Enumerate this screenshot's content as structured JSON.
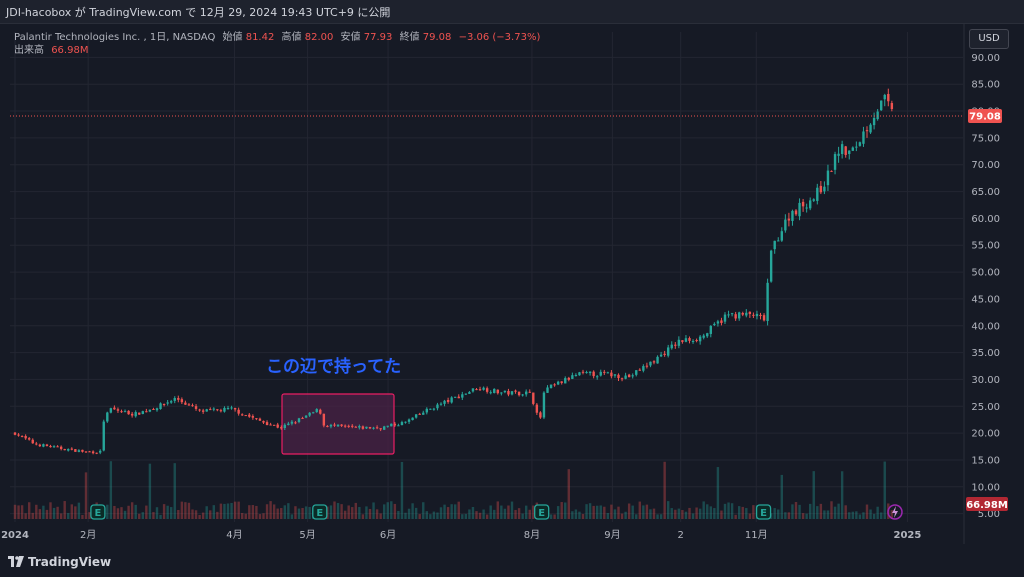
{
  "snapshot_caption": "JDI-hacobox が TradingView.com で 12月 29, 2024 19:43 UTC+9 に公開",
  "legend": {
    "symbol": "Palantir Technologies Inc.",
    "interval": "1日",
    "exchange": "NASDAQ",
    "open_label": "始値",
    "open": "81.42",
    "high_label": "高値",
    "high": "82.00",
    "low_label": "安値",
    "low": "77.93",
    "close_label": "終値",
    "close": "79.08",
    "change": "−3.06 (−3.73%)",
    "volume_label": "出来高",
    "volume": "66.98M"
  },
  "currency_button": "USD",
  "annotation": {
    "text": "この辺で持ってた",
    "color": "#2962ff",
    "box_border": "#e91e63",
    "box_fill": "#4a2145"
  },
  "last_price_label": "79.08",
  "volume_axis_label": "66.98M",
  "brand": "TradingView",
  "colors": {
    "up": "#26a69a",
    "down": "#ef5350",
    "background": "#161a25",
    "grid": "#232632",
    "text": "#b2b5be"
  },
  "earnings_marker": "E",
  "chart_data": {
    "type": "candlestick",
    "title": "Palantir Technologies Inc., 1日, NASDAQ",
    "ylabel": "USD",
    "y_ticks": [
      "90.00",
      "85.00",
      "80.00",
      "75.00",
      "70.00",
      "65.00",
      "60.00",
      "55.00",
      "50.00",
      "45.00",
      "40.00",
      "35.00",
      "30.00",
      "25.00",
      "20.00",
      "15.00",
      "10.00",
      "5.00"
    ],
    "ylim": [
      4,
      91
    ],
    "x_ticks": [
      "2024",
      "2月",
      "4月",
      "5月",
      "6月",
      "8月",
      "9月",
      "2",
      "11月",
      "2025"
    ],
    "grid": true,
    "price_path": [
      [
        "2024-01-02",
        20.0
      ],
      [
        "2024-01-10",
        18.0
      ],
      [
        "2024-01-20",
        17.2
      ],
      [
        "2024-01-31",
        16.5
      ],
      [
        "2024-02-06",
        16.5
      ],
      [
        "2024-02-07",
        22.0
      ],
      [
        "2024-02-10",
        24.5
      ],
      [
        "2024-02-20",
        23.5
      ],
      [
        "2024-03-01",
        25.0
      ],
      [
        "2024-03-08",
        26.5
      ],
      [
        "2024-03-18",
        24.0
      ],
      [
        "2024-03-31",
        24.5
      ],
      [
        "2024-04-10",
        22.5
      ],
      [
        "2024-04-20",
        21.0
      ],
      [
        "2024-04-30",
        23.0
      ],
      [
        "2024-05-06",
        24.5
      ],
      [
        "2024-05-07",
        21.5
      ],
      [
        "2024-05-20",
        21.0
      ],
      [
        "2024-05-31",
        21.0
      ],
      [
        "2024-06-10",
        22.0
      ],
      [
        "2024-06-20",
        24.5
      ],
      [
        "2024-06-30",
        26.5
      ],
      [
        "2024-07-10",
        28.5
      ],
      [
        "2024-07-20",
        27.5
      ],
      [
        "2024-07-31",
        27.5
      ],
      [
        "2024-08-05",
        22.0
      ],
      [
        "2024-08-06",
        28.0
      ],
      [
        "2024-08-20",
        31.0
      ],
      [
        "2024-08-31",
        31.0
      ],
      [
        "2024-09-10",
        30.5
      ],
      [
        "2024-09-20",
        33.5
      ],
      [
        "2024-09-30",
        37.0
      ],
      [
        "2024-10-10",
        38.0
      ],
      [
        "2024-10-20",
        42.0
      ],
      [
        "2024-10-31",
        42.0
      ],
      [
        "2024-11-04",
        41.0
      ],
      [
        "2024-11-05",
        42.0
      ],
      [
        "2024-11-06",
        51.0
      ],
      [
        "2024-11-08",
        55.0
      ],
      [
        "2024-11-15",
        61.0
      ],
      [
        "2024-11-25",
        64.0
      ],
      [
        "2024-11-30",
        67.5
      ],
      [
        "2024-12-05",
        73.0
      ],
      [
        "2024-12-10",
        72.0
      ],
      [
        "2024-12-15",
        76.0
      ],
      [
        "2024-12-20",
        80.0
      ],
      [
        "2024-12-24",
        82.1
      ],
      [
        "2024-12-27",
        79.08
      ]
    ],
    "annotation_range": [
      "2024-04-01",
      "2024-05-24"
    ],
    "earnings_dates": [
      "2024-02-05",
      "2024-05-06",
      "2024-08-05",
      "2024-11-04"
    ],
    "volume": {
      "last": "66.98M"
    }
  }
}
